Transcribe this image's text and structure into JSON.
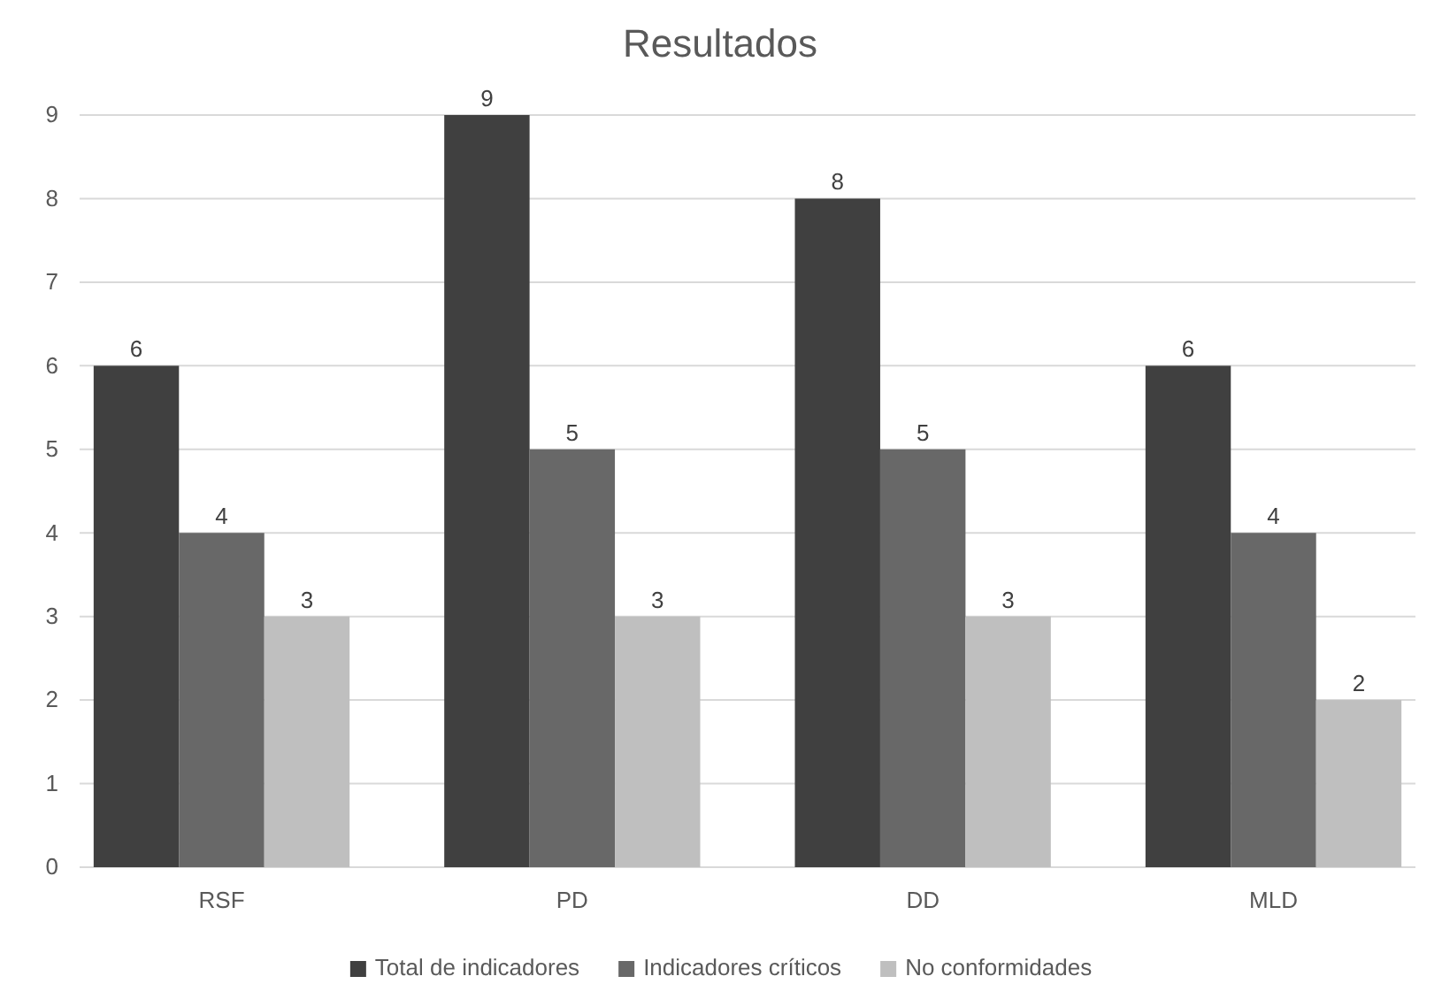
{
  "chart_data": {
    "type": "bar",
    "title": "Resultados",
    "categories": [
      "RSF",
      "PD",
      "DD",
      "MLD"
    ],
    "series": [
      {
        "name": "Total de indicadores",
        "color": "#404040",
        "values": [
          6,
          9,
          8,
          6
        ]
      },
      {
        "name": "Indicadores críticos",
        "color": "#686868",
        "values": [
          4,
          5,
          5,
          4
        ]
      },
      {
        "name": "No conformidades",
        "color": "#bfbfbf",
        "values": [
          3,
          3,
          3,
          2
        ]
      }
    ],
    "ylim": [
      0,
      9
    ],
    "yticks": [
      0,
      1,
      2,
      3,
      4,
      5,
      6,
      7,
      8,
      9
    ],
    "grid": "y",
    "legend": "bottom",
    "data_labels": true
  }
}
